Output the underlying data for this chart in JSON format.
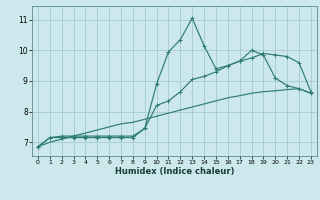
{
  "title": "",
  "xlabel": "Humidex (Indice chaleur)",
  "bg_color": "#cce8ec",
  "grid_color": "#aacdd4",
  "line_color": "#2e7d6e",
  "xlim": [
    -0.5,
    23.5
  ],
  "ylim": [
    6.55,
    11.45
  ],
  "xticks": [
    0,
    1,
    2,
    3,
    4,
    5,
    6,
    7,
    8,
    9,
    10,
    11,
    12,
    13,
    14,
    15,
    16,
    17,
    18,
    19,
    20,
    21,
    22,
    23
  ],
  "yticks": [
    7,
    8,
    9,
    10,
    11
  ],
  "series1_y": [
    6.85,
    7.15,
    7.15,
    7.15,
    7.15,
    7.15,
    7.15,
    7.15,
    7.15,
    7.45,
    8.9,
    9.95,
    10.35,
    11.05,
    10.15,
    9.4,
    9.5,
    9.65,
    10.0,
    9.85,
    9.1,
    8.85,
    8.75,
    8.6
  ],
  "series2_y": [
    6.85,
    7.15,
    7.2,
    7.2,
    7.2,
    7.2,
    7.2,
    7.2,
    7.2,
    7.45,
    8.2,
    8.35,
    8.65,
    9.05,
    9.15,
    9.3,
    9.5,
    9.65,
    9.75,
    9.9,
    9.85,
    9.8,
    9.6,
    8.65
  ],
  "series3_y": [
    6.85,
    7.0,
    7.1,
    7.2,
    7.3,
    7.4,
    7.5,
    7.6,
    7.65,
    7.75,
    7.85,
    7.95,
    8.05,
    8.15,
    8.25,
    8.35,
    8.45,
    8.52,
    8.6,
    8.65,
    8.68,
    8.72,
    8.75,
    8.6
  ]
}
